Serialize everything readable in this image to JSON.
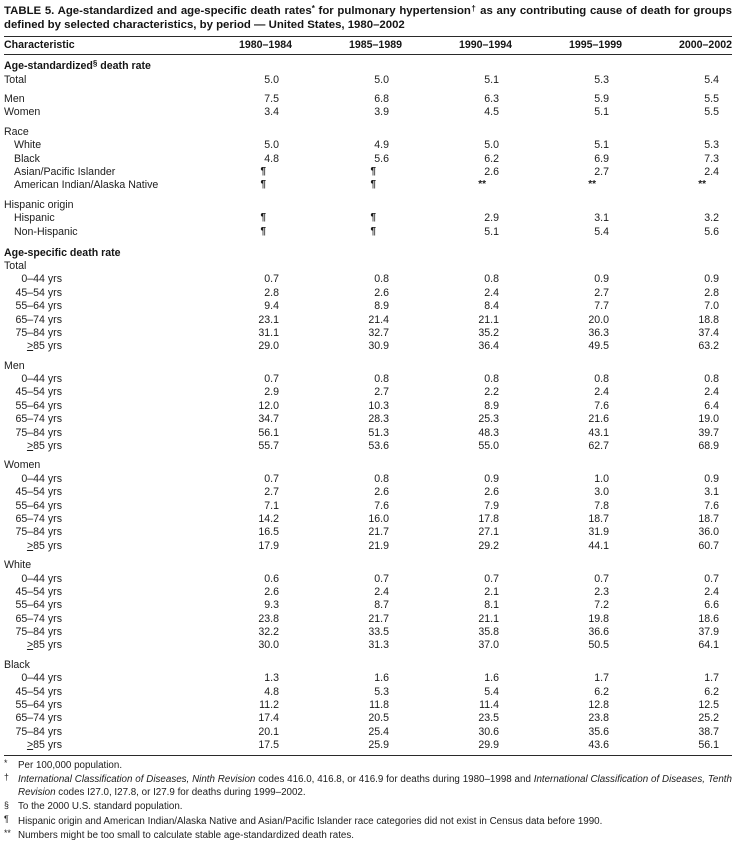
{
  "title": {
    "segments": [
      {
        "text": "TABLE 5. Age-standardized and age-specific death rates"
      },
      {
        "text": "*",
        "sup": true
      },
      {
        "text": " for pulmonary hypertension"
      },
      {
        "text": "†",
        "sup": true
      },
      {
        "text": " as any contributing cause of death for groups defined by selected characteristics, by period — United States, 1980–2002"
      }
    ]
  },
  "table": {
    "columns": [
      "Characteristic",
      "1980–1984",
      "1985–1989",
      "1990–1994",
      "1995–1999",
      "2000–2002"
    ],
    "rows": [
      {
        "type": "section",
        "segments": [
          {
            "text": "Age-standardized"
          },
          {
            "text": "§",
            "sup": true
          },
          {
            "text": " death rate"
          }
        ]
      },
      {
        "type": "row",
        "label": "Total",
        "level": 0,
        "values": [
          "5.0",
          "5.0",
          "5.1",
          "5.3",
          "5.4"
        ]
      },
      {
        "type": "row",
        "label": "Men",
        "level": 0,
        "gap": true,
        "values": [
          "7.5",
          "6.8",
          "6.3",
          "5.9",
          "5.5"
        ]
      },
      {
        "type": "row",
        "label": "Women",
        "level": 0,
        "values": [
          "3.4",
          "3.9",
          "4.5",
          "5.1",
          "5.5"
        ]
      },
      {
        "type": "group",
        "label": "Race",
        "gap": true
      },
      {
        "type": "row",
        "label": "White",
        "level": 1,
        "values": [
          "5.0",
          "4.9",
          "5.0",
          "5.1",
          "5.3"
        ]
      },
      {
        "type": "row",
        "label": "Black",
        "level": 1,
        "values": [
          "4.8",
          "5.6",
          "6.2",
          "6.9",
          "7.3"
        ]
      },
      {
        "type": "row",
        "label": "Asian/Pacific Islander",
        "level": 1,
        "values": [
          "¶",
          "¶",
          "2.6",
          "2.7",
          "2.4"
        ]
      },
      {
        "type": "row",
        "label": "American Indian/Alaska Native",
        "level": 1,
        "values": [
          "¶",
          "¶",
          "**",
          "**",
          "**"
        ]
      },
      {
        "type": "group",
        "label": "Hispanic origin",
        "gap": true
      },
      {
        "type": "row",
        "label": "Hispanic",
        "level": 1,
        "values": [
          "¶",
          "¶",
          "2.9",
          "3.1",
          "3.2"
        ]
      },
      {
        "type": "row",
        "label": "Non-Hispanic",
        "level": 1,
        "values": [
          "¶",
          "¶",
          "5.1",
          "5.4",
          "5.6"
        ]
      },
      {
        "type": "section",
        "gap": true,
        "segments": [
          {
            "text": "Age-specific death rate"
          }
        ]
      },
      {
        "type": "group",
        "label": "Total"
      },
      {
        "type": "row",
        "label": "0–44 yrs",
        "age": true,
        "values": [
          "0.7",
          "0.8",
          "0.8",
          "0.9",
          "0.9"
        ]
      },
      {
        "type": "row",
        "label": "45–54 yrs",
        "age": true,
        "values": [
          "2.8",
          "2.6",
          "2.4",
          "2.7",
          "2.8"
        ]
      },
      {
        "type": "row",
        "label": "55–64 yrs",
        "age": true,
        "values": [
          "9.4",
          "8.9",
          "8.4",
          "7.7",
          "7.0"
        ]
      },
      {
        "type": "row",
        "label": "65–74 yrs",
        "age": true,
        "values": [
          "23.1",
          "21.4",
          "21.1",
          "20.0",
          "18.8"
        ]
      },
      {
        "type": "row",
        "label": "75–84 yrs",
        "age": true,
        "values": [
          "31.1",
          "32.7",
          "35.2",
          "36.3",
          "37.4"
        ]
      },
      {
        "type": "row",
        "label": "≥85 yrs",
        "age": true,
        "values": [
          "29.0",
          "30.9",
          "36.4",
          "49.5",
          "63.2"
        ]
      },
      {
        "type": "group",
        "label": "Men",
        "gap": true
      },
      {
        "type": "row",
        "label": "0–44 yrs",
        "age": true,
        "values": [
          "0.7",
          "0.8",
          "0.8",
          "0.8",
          "0.8"
        ]
      },
      {
        "type": "row",
        "label": "45–54 yrs",
        "age": true,
        "values": [
          "2.9",
          "2.7",
          "2.2",
          "2.4",
          "2.4"
        ]
      },
      {
        "type": "row",
        "label": "55–64 yrs",
        "age": true,
        "values": [
          "12.0",
          "10.3",
          "8.9",
          "7.6",
          "6.4"
        ]
      },
      {
        "type": "row",
        "label": "65–74 yrs",
        "age": true,
        "values": [
          "34.7",
          "28.3",
          "25.3",
          "21.6",
          "19.0"
        ]
      },
      {
        "type": "row",
        "label": "75–84 yrs",
        "age": true,
        "values": [
          "56.1",
          "51.3",
          "48.3",
          "43.1",
          "39.7"
        ]
      },
      {
        "type": "row",
        "label": "≥85 yrs",
        "age": true,
        "values": [
          "55.7",
          "53.6",
          "55.0",
          "62.7",
          "68.9"
        ]
      },
      {
        "type": "group",
        "label": "Women",
        "gap": true
      },
      {
        "type": "row",
        "label": "0–44 yrs",
        "age": true,
        "values": [
          "0.7",
          "0.8",
          "0.9",
          "1.0",
          "0.9"
        ]
      },
      {
        "type": "row",
        "label": "45–54 yrs",
        "age": true,
        "values": [
          "2.7",
          "2.6",
          "2.6",
          "3.0",
          "3.1"
        ]
      },
      {
        "type": "row",
        "label": "55–64 yrs",
        "age": true,
        "values": [
          "7.1",
          "7.6",
          "7.9",
          "7.8",
          "7.6"
        ]
      },
      {
        "type": "row",
        "label": "65–74 yrs",
        "age": true,
        "values": [
          "14.2",
          "16.0",
          "17.8",
          "18.7",
          "18.7"
        ]
      },
      {
        "type": "row",
        "label": "75–84 yrs",
        "age": true,
        "values": [
          "16.5",
          "21.7",
          "27.1",
          "31.9",
          "36.0"
        ]
      },
      {
        "type": "row",
        "label": "≥85 yrs",
        "age": true,
        "values": [
          "17.9",
          "21.9",
          "29.2",
          "44.1",
          "60.7"
        ]
      },
      {
        "type": "group",
        "label": "White",
        "gap": true
      },
      {
        "type": "row",
        "label": "0–44 yrs",
        "age": true,
        "values": [
          "0.6",
          "0.7",
          "0.7",
          "0.7",
          "0.7"
        ]
      },
      {
        "type": "row",
        "label": "45–54 yrs",
        "age": true,
        "values": [
          "2.6",
          "2.4",
          "2.1",
          "2.3",
          "2.4"
        ]
      },
      {
        "type": "row",
        "label": "55–64 yrs",
        "age": true,
        "values": [
          "9.3",
          "8.7",
          "8.1",
          "7.2",
          "6.6"
        ]
      },
      {
        "type": "row",
        "label": "65–74 yrs",
        "age": true,
        "values": [
          "23.8",
          "21.7",
          "21.1",
          "19.8",
          "18.6"
        ]
      },
      {
        "type": "row",
        "label": "75–84 yrs",
        "age": true,
        "values": [
          "32.2",
          "33.5",
          "35.8",
          "36.6",
          "37.9"
        ]
      },
      {
        "type": "row",
        "label": "≥85 yrs",
        "age": true,
        "values": [
          "30.0",
          "31.3",
          "37.0",
          "50.5",
          "64.1"
        ]
      },
      {
        "type": "group",
        "label": "Black",
        "gap": true
      },
      {
        "type": "row",
        "label": "0–44 yrs",
        "age": true,
        "values": [
          "1.3",
          "1.6",
          "1.6",
          "1.7",
          "1.7"
        ]
      },
      {
        "type": "row",
        "label": "45–54 yrs",
        "age": true,
        "values": [
          "4.8",
          "5.3",
          "5.4",
          "6.2",
          "6.2"
        ]
      },
      {
        "type": "row",
        "label": "55–64 yrs",
        "age": true,
        "values": [
          "11.2",
          "11.8",
          "11.4",
          "12.8",
          "12.5"
        ]
      },
      {
        "type": "row",
        "label": "65–74 yrs",
        "age": true,
        "values": [
          "17.4",
          "20.5",
          "23.5",
          "23.8",
          "25.2"
        ]
      },
      {
        "type": "row",
        "label": "75–84 yrs",
        "age": true,
        "values": [
          "20.1",
          "25.4",
          "30.6",
          "35.6",
          "38.7"
        ]
      },
      {
        "type": "row",
        "label": "≥85 yrs",
        "age": true,
        "values": [
          "17.5",
          "25.9",
          "29.9",
          "43.6",
          "56.1"
        ]
      }
    ]
  },
  "footnotes": [
    {
      "marker": "*",
      "segments": [
        {
          "text": "Per 100,000 population."
        }
      ]
    },
    {
      "marker": "†",
      "segments": [
        {
          "text": "International Classification of Diseases, Ninth Revision",
          "italic": true
        },
        {
          "text": " codes 416.0, 416.8, or 416.9 for deaths during 1980–1998 and "
        },
        {
          "text": "International Classification of Diseases, Tenth Revision",
          "italic": true
        },
        {
          "text": " codes I27.0, I27.8, or I27.9 for deaths during 1999–2002."
        }
      ]
    },
    {
      "marker": "§",
      "segments": [
        {
          "text": "To the 2000 U.S. standard population."
        }
      ]
    },
    {
      "marker": "¶",
      "segments": [
        {
          "text": "Hispanic origin and American Indian/Alaska Native and Asian/Pacific Islander race categories did not exist in Census data before 1990."
        }
      ]
    },
    {
      "marker": "**",
      "segments": [
        {
          "text": "Numbers might be too small to calculate stable age-standardized death rates."
        }
      ]
    }
  ]
}
